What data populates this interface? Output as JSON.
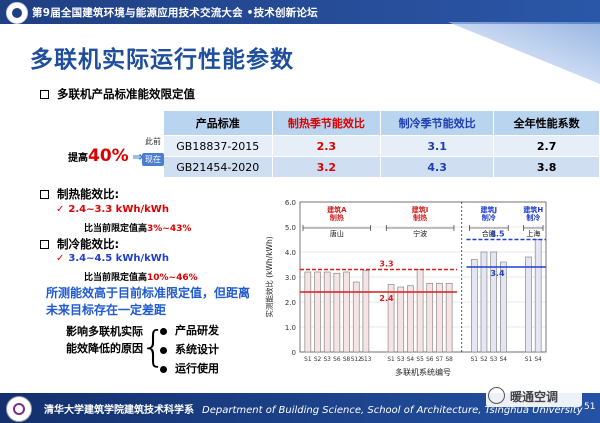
{
  "header": {
    "title": "第9届全国建筑环境与能源应用技术交流大会  •技术创新论坛"
  },
  "page_title": "多联机实际运行性能参数",
  "section1": {
    "heading": "多联机产品标准能效限定值"
  },
  "table": {
    "headers": [
      "产品标准",
      "制热季节能效比",
      "制冷季节能效比",
      "全年性能系数"
    ],
    "rows": [
      {
        "tag": "此前",
        "values": [
          "GB18837-2015",
          "2.3",
          "3.1",
          "2.7"
        ]
      },
      {
        "tag": "现在",
        "values": [
          "GB21454-2020",
          "3.2",
          "4.3",
          "3.8"
        ]
      }
    ]
  },
  "uplift": {
    "prefix": "提高",
    "value": "40%",
    "arrow": "⇒"
  },
  "heating": {
    "heading": "制热能效比:",
    "range": "2.4~3.3 kWh/kWh",
    "note_prefix": "比当前限定值高",
    "note_value": "3%~43%"
  },
  "cooling": {
    "heading": "制冷能效比:",
    "range": "3.4~4.5 kWh/kWh",
    "note_prefix": "比当前限定值高",
    "note_value": "10%~46%"
  },
  "conclusion": "所测能效高于目前标准限定值，但距离未来目标存在一定差距",
  "factors": {
    "label_line1": "影响多联机实际",
    "label_line2": "能效降低的原因",
    "items": [
      "产品研发",
      "系统设计",
      "运行使用"
    ]
  },
  "footer": {
    "cn": "清华大学建筑学院建筑技术科学系",
    "en": "Department of Building Science, School of Architecture, Tsinghua University",
    "page": "51"
  },
  "watermark": {
    "text": "暖通空调"
  },
  "chart_data": {
    "type": "bar",
    "ylabel": "实测能效比 (kWh/kWh)",
    "xlabel": "多联机系统编号",
    "ylim": [
      0,
      6.0
    ],
    "yticks": [
      "0",
      "1.0",
      "2.0",
      "3.0",
      "4.0",
      "5.0",
      "6.0"
    ],
    "groups": [
      {
        "label": "建筑A\n制热",
        "city": "唐山",
        "x": [
          "S1",
          "S2",
          "S3",
          "S6",
          "S8",
          "S12",
          "S13"
        ],
        "values": [
          3.2,
          3.2,
          3.2,
          3.15,
          3.2,
          2.8,
          3.25
        ],
        "mode": "heating"
      },
      {
        "label": "建筑I\n制热",
        "city": "宁波",
        "x": [
          "S1",
          "S3",
          "S4",
          "S5",
          "S6",
          "S7",
          "S8"
        ],
        "values": [
          2.7,
          2.6,
          2.65,
          3.3,
          2.75,
          2.75,
          2.75
        ],
        "mode": "heating"
      },
      {
        "label": "建筑J\n制冷",
        "city": "合肥",
        "x": [
          "S1",
          "S2",
          "S3",
          "S4"
        ],
        "values": [
          3.7,
          4.0,
          4.0,
          3.6
        ],
        "mode": "cooling"
      },
      {
        "label": "建筑H\n制冷",
        "city": "上海",
        "x": [
          "S1",
          "S4"
        ],
        "values": [
          3.8,
          4.5
        ],
        "mode": "cooling"
      }
    ],
    "reference_lines": [
      {
        "value": 3.3,
        "label": "3.3",
        "group": "heating",
        "color": "#d31f1f",
        "style": "dashed"
      },
      {
        "value": 2.4,
        "label": "2.4",
        "group": "heating",
        "color": "#d31f1f",
        "style": "solid"
      },
      {
        "value": 4.5,
        "label": "4.5",
        "group": "cooling",
        "color": "#1f3fd0",
        "style": "dashed"
      },
      {
        "value": 3.4,
        "label": "3.4",
        "group": "cooling",
        "color": "#1f3fd0",
        "style": "solid"
      }
    ]
  }
}
